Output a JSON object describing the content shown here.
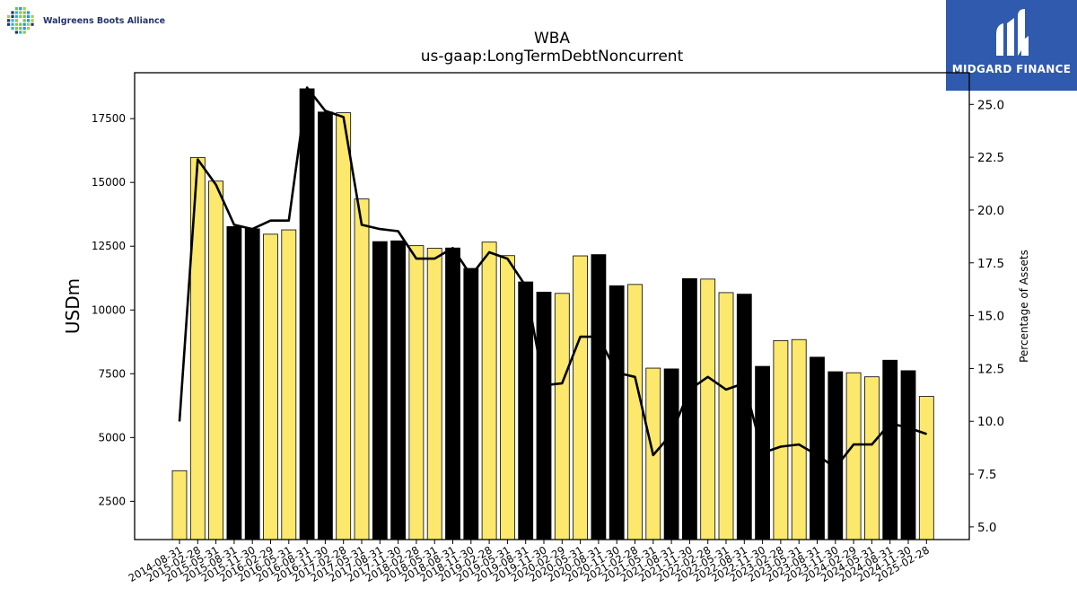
{
  "logos": {
    "left_company": "Walgreens Boots Alliance",
    "right_company": "MIDGARD FINANCE"
  },
  "chart_data": {
    "type": "bar",
    "title": "WBA",
    "subtitle": "us-gaap:LongTermDebtNoncurrent",
    "ylabel": "USDm",
    "y2label": "Percentage of Assets",
    "ylim": [
      1000,
      19300
    ],
    "y2lim": [
      4.4,
      26.5
    ],
    "yticks": [
      2500,
      5000,
      7500,
      10000,
      12500,
      15000,
      17500
    ],
    "y2ticks": [
      5.0,
      7.5,
      10.0,
      12.5,
      15.0,
      17.5,
      20.0,
      22.5,
      25.0
    ],
    "colors": {
      "bar": "#fbe86d",
      "fiscal_year_end_bar": "#000000",
      "line": "#000000",
      "logo_bg": "#2f5aad"
    },
    "categories": [
      "2014-08-31",
      "2015-02-28",
      "2015-05-31",
      "2015-08-31",
      "2015-11-30",
      "2016-02-29",
      "2016-05-31",
      "2016-08-31",
      "2016-11-30",
      "2017-02-28",
      "2017-05-31",
      "2017-08-31",
      "2017-11-30",
      "2018-02-28",
      "2018-05-31",
      "2018-08-31",
      "2018-11-30",
      "2019-02-28",
      "2019-05-31",
      "2019-08-31",
      "2019-11-30",
      "2020-02-29",
      "2020-05-31",
      "2020-08-31",
      "2020-11-30",
      "2021-02-28",
      "2021-05-31",
      "2021-08-31",
      "2021-11-30",
      "2022-02-28",
      "2022-05-31",
      "2022-08-31",
      "2022-11-30",
      "2023-02-28",
      "2023-05-31",
      "2023-08-31",
      "2023-11-30",
      "2024-02-29",
      "2024-05-31",
      "2024-08-31",
      "2024-11-30",
      "2025-02-28"
    ],
    "series": [
      {
        "name": "",
        "kind": "bar",
        "values": [
          3700,
          15980,
          15050,
          13270,
          13180,
          12970,
          13140,
          18670,
          17760,
          17730,
          14350,
          12680,
          12710,
          12520,
          12420,
          12430,
          11630,
          12660,
          12130,
          11100,
          10700,
          10650,
          12120,
          12170,
          10950,
          11000,
          7720,
          7690,
          11230,
          11210,
          10680,
          10620,
          7790,
          8800,
          8840,
          8150,
          7580,
          7540,
          7380,
          8030,
          7620,
          6610
        ]
      },
      {
        "name": "",
        "kind": "line",
        "axis": "right",
        "values": [
          10.0,
          22.4,
          21.2,
          19.3,
          19.1,
          19.5,
          19.5,
          25.8,
          24.7,
          24.4,
          19.3,
          19.1,
          19.0,
          17.7,
          17.7,
          18.2,
          16.9,
          18.0,
          17.7,
          16.4,
          11.7,
          11.8,
          14.0,
          14.0,
          12.3,
          12.1,
          8.4,
          9.4,
          11.5,
          12.1,
          11.5,
          11.8,
          8.5,
          8.8,
          8.9,
          8.4,
          7.8,
          8.9,
          8.9,
          9.9,
          9.7,
          9.4
        ]
      }
    ]
  }
}
